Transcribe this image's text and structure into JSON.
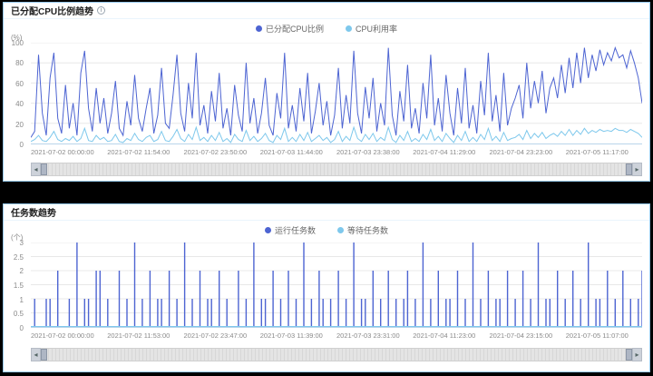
{
  "colors": {
    "panel_border": "#97c9ec",
    "series_blue": "#4d64d2",
    "series_cyan": "#7ec8ec",
    "grid_line": "#e8e8e8",
    "axis_line": "#b9d4ea"
  },
  "panels": [
    {
      "title": "已分配CPU比例趋势",
      "info_icon": "info-icon"
    },
    {
      "title": "任务数趋势"
    }
  ],
  "chart_data": [
    {
      "type": "line",
      "title": "已分配CPU比例趋势",
      "xlabel": "",
      "ylabel": "(%)",
      "ylim": [
        0,
        100
      ],
      "yticks": [
        0,
        20,
        40,
        60,
        80,
        100
      ],
      "grid": true,
      "legend_position": "top",
      "x_tick_labels": [
        "2021-07-02 00:00:00",
        "2021-07-02 11:54:00",
        "2021-07-02 23:50:00",
        "2021-07-03 11:44:00",
        "2021-07-03 23:38:00",
        "2021-07-04 11:29:00",
        "2021-07-04 23:23:00",
        "2021-07-05 11:17:00"
      ],
      "series": [
        {
          "name": "已分配CPU比例",
          "color": "#4d64d2",
          "values": [
            6,
            12,
            88,
            30,
            8,
            65,
            90,
            25,
            10,
            58,
            15,
            40,
            8,
            70,
            92,
            35,
            12,
            55,
            20,
            45,
            10,
            30,
            62,
            15,
            8,
            42,
            18,
            68,
            25,
            12,
            35,
            55,
            10,
            28,
            75,
            20,
            15,
            48,
            88,
            30,
            12,
            60,
            25,
            90,
            18,
            38,
            10,
            52,
            22,
            70,
            15,
            35,
            8,
            58,
            28,
            12,
            80,
            20,
            45,
            10,
            30,
            65,
            18,
            8,
            50,
            25,
            90,
            15,
            38,
            12,
            55,
            22,
            70,
            10,
            32,
            60,
            18,
            42,
            8,
            28,
            75,
            15,
            48,
            20,
            92,
            30,
            10,
            56,
            25,
            65,
            12,
            40,
            18,
            95,
            28,
            8,
            52,
            22,
            78,
            15,
            35,
            10,
            60,
            25,
            88,
            18,
            45,
            12,
            68,
            30,
            8,
            55,
            20,
            75,
            15,
            38,
            10,
            62,
            28,
            90,
            22,
            48,
            12,
            70,
            18,
            35,
            45,
            58,
            25,
            80,
            35,
            62,
            40,
            72,
            30,
            55,
            65,
            45,
            78,
            50,
            85,
            55,
            90,
            60,
            95,
            65,
            88,
            72,
            93,
            78,
            90,
            82,
            95,
            85,
            88,
            75,
            92,
            80,
            65,
            40
          ]
        },
        {
          "name": "CPU利用率",
          "color": "#7ec8ec",
          "values": [
            2,
            4,
            8,
            3,
            2,
            6,
            12,
            4,
            2,
            5,
            3,
            7,
            2,
            5,
            15,
            3,
            2,
            8,
            4,
            6,
            2,
            3,
            9,
            2,
            1,
            5,
            3,
            10,
            4,
            2,
            6,
            8,
            2,
            4,
            12,
            3,
            2,
            7,
            14,
            5,
            2,
            9,
            4,
            16,
            3,
            6,
            2,
            8,
            3,
            11,
            2,
            5,
            1,
            9,
            4,
            2,
            13,
            3,
            7,
            2,
            5,
            10,
            3,
            1,
            8,
            4,
            15,
            2,
            6,
            2,
            9,
            3,
            11,
            2,
            5,
            8,
            3,
            6,
            1,
            4,
            12,
            2,
            7,
            3,
            16,
            5,
            2,
            9,
            4,
            10,
            2,
            6,
            3,
            16,
            4,
            1,
            8,
            3,
            12,
            2,
            5,
            2,
            9,
            4,
            14,
            3,
            7,
            2,
            10,
            5,
            1,
            8,
            3,
            12,
            2,
            6,
            2,
            9,
            4,
            15,
            3,
            7,
            2,
            11,
            3,
            5,
            6,
            9,
            4,
            13,
            5,
            10,
            6,
            11,
            5,
            8,
            10,
            7,
            12,
            8,
            14,
            8,
            13,
            9,
            15,
            10,
            13,
            11,
            14,
            12,
            13,
            12,
            15,
            13,
            13,
            11,
            14,
            12,
            10,
            6
          ]
        }
      ]
    },
    {
      "type": "line",
      "style": "stem",
      "title": "任务数趋势",
      "xlabel": "",
      "ylabel": "(个)",
      "ylim": [
        0,
        3
      ],
      "yticks": [
        0,
        0.5,
        1,
        1.5,
        2,
        2.5,
        3
      ],
      "grid": true,
      "legend_position": "top",
      "x_tick_labels": [
        "2021-07-02 00:00:00",
        "2021-07-02 11:53:00",
        "2021-07-02 23:47:00",
        "2021-07-03 11:39:00",
        "2021-07-03 23:31:00",
        "2021-07-04 11:23:00",
        "2021-07-04 23:15:00",
        "2021-07-05 11:07:00"
      ],
      "series": [
        {
          "name": "运行任务数",
          "color": "#4d64d2",
          "values": [
            0,
            1,
            0,
            0,
            1,
            1,
            0,
            2,
            0,
            0,
            1,
            0,
            3,
            0,
            1,
            1,
            0,
            2,
            2,
            0,
            1,
            0,
            0,
            2,
            0,
            1,
            0,
            3,
            0,
            1,
            0,
            2,
            0,
            1,
            1,
            0,
            2,
            0,
            1,
            0,
            3,
            0,
            1,
            0,
            2,
            0,
            1,
            1,
            0,
            2,
            0,
            1,
            0,
            0,
            2,
            0,
            1,
            0,
            3,
            0,
            1,
            1,
            0,
            2,
            0,
            1,
            0,
            2,
            0,
            1,
            0,
            3,
            0,
            1,
            0,
            2,
            1,
            0,
            1,
            0,
            2,
            0,
            1,
            0,
            3,
            0,
            1,
            1,
            0,
            2,
            0,
            1,
            0,
            2,
            0,
            1,
            0,
            1,
            2,
            0,
            1,
            0,
            3,
            0,
            1,
            0,
            2,
            0,
            1,
            1,
            0,
            2,
            0,
            1,
            0,
            3,
            0,
            1,
            0,
            2,
            0,
            1,
            1,
            0,
            2,
            0,
            1,
            0,
            2,
            0,
            1,
            0,
            3,
            0,
            1,
            1,
            0,
            2,
            0,
            1,
            0,
            2,
            0,
            1,
            0,
            3,
            0,
            1,
            1,
            0,
            2,
            0,
            1,
            0,
            2,
            0,
            1,
            0,
            1,
            2
          ]
        },
        {
          "name": "等待任务数",
          "color": "#7ec8ec",
          "values": [
            0,
            0,
            0,
            0,
            0,
            0,
            0,
            0,
            0,
            0,
            0,
            0,
            0,
            0,
            0,
            0,
            0,
            0,
            0,
            0,
            0,
            0,
            0,
            0,
            0,
            0,
            0,
            0,
            0,
            0,
            0,
            0,
            0,
            0,
            0,
            0,
            0,
            0,
            0,
            0,
            0,
            0,
            0,
            0,
            0,
            0,
            0,
            0,
            0,
            0,
            0,
            0,
            0,
            0,
            0,
            0,
            0,
            0,
            0,
            0,
            0,
            0,
            0,
            0,
            0,
            0,
            0,
            0,
            0,
            0,
            0,
            0,
            0,
            0,
            0,
            0,
            0,
            0,
            0,
            0,
            0,
            0,
            0,
            0,
            0,
            0,
            0,
            0,
            0,
            0,
            0,
            0,
            0,
            0,
            0,
            0,
            0,
            0,
            0,
            0,
            0,
            0,
            0,
            0,
            0,
            0,
            0,
            0,
            0,
            0,
            0,
            0,
            0,
            0,
            0,
            0,
            0,
            0,
            0,
            0,
            0,
            0,
            0,
            0,
            0,
            0,
            0,
            0,
            0,
            0,
            0,
            0,
            0,
            0,
            0,
            0,
            0,
            0,
            0,
            0,
            0,
            0,
            0,
            0,
            0,
            0,
            0,
            0,
            0,
            0,
            0,
            0,
            0,
            0,
            0,
            0,
            0,
            0,
            0,
            0
          ]
        }
      ]
    }
  ]
}
